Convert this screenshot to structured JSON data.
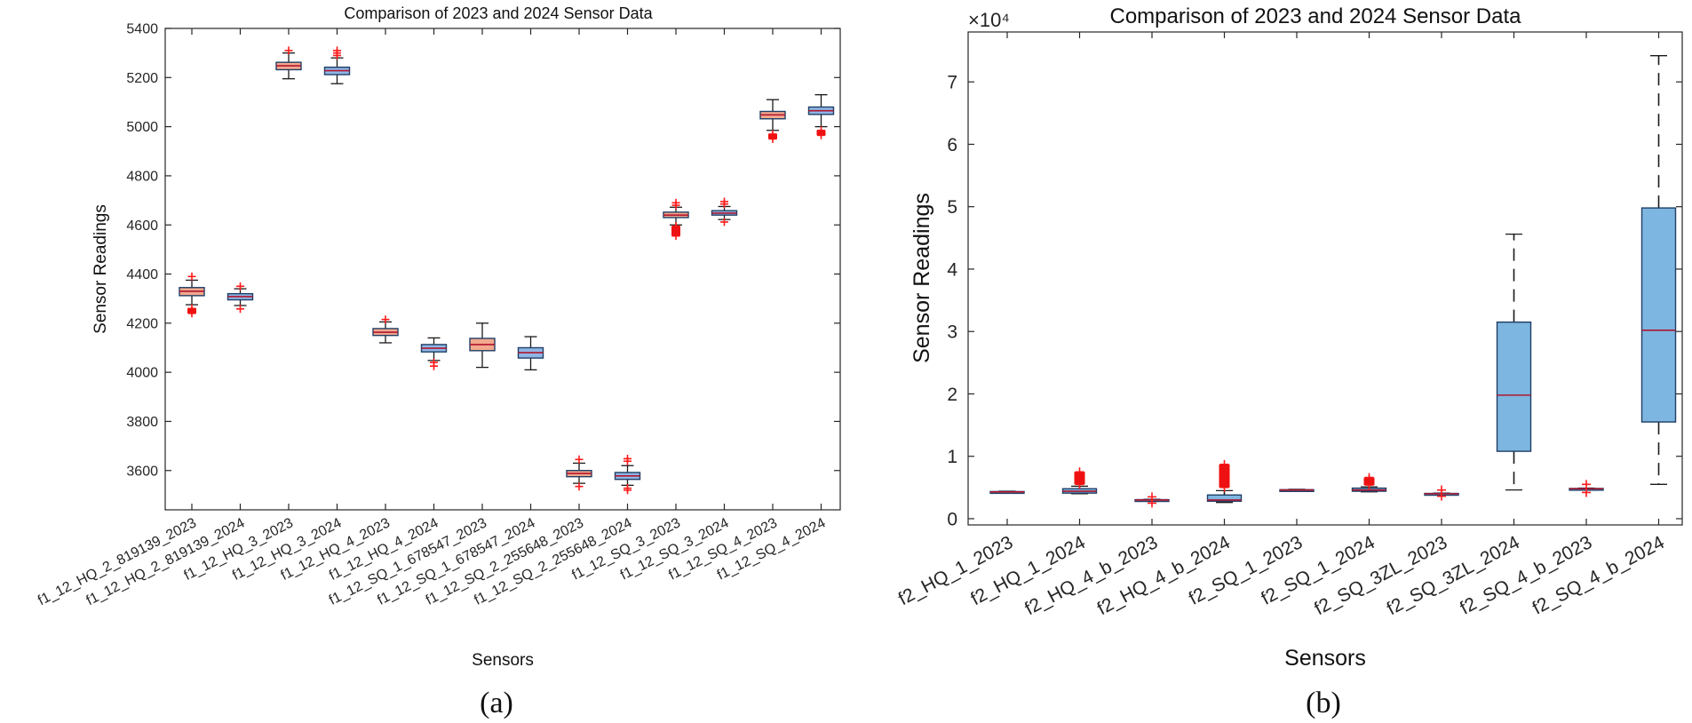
{
  "panel_labels": {
    "a": "(a)",
    "b": "(b)"
  },
  "colors": {
    "box_2023_a": "#f3a98e",
    "box_2024_a": "#8fb6e6",
    "box_b": "#7db6e0",
    "outlier": "#ff1a1a",
    "median": "#b0162f"
  },
  "chart_data": [
    {
      "id": "a",
      "type": "box",
      "title": "Comparison of 2023 and 2024 Sensor Data",
      "xlabel": "Sensors",
      "ylabel": "Sensor Readings",
      "ylim": [
        3440,
        5400
      ],
      "yticks": [
        3600,
        3800,
        4000,
        4200,
        4400,
        4600,
        4800,
        5000,
        5200,
        5400
      ],
      "ytick_labels": [
        "3600",
        "3800",
        "4000",
        "4200",
        "4400",
        "4600",
        "4800",
        "5000",
        "5200",
        "5400"
      ],
      "categories": [
        "f1_12_HQ_2_819139_2023",
        "f1_12_HQ_2_819139_2024",
        "f1_12_HQ_3_2023",
        "f1_12_HQ_3_2024",
        "f1_12_HQ_4_2023",
        "f1_12_HQ_4_2024",
        "f1_12_SQ_1_678547_2023",
        "f1_12_SQ_1_678547_2024",
        "f1_12_SQ_2_255648_2023",
        "f1_12_SQ_2_255648_2024",
        "f1_12_SQ_3_2023",
        "f1_12_SQ_3_2024",
        "f1_12_SQ_4_2023",
        "f1_12_SQ_4_2024"
      ],
      "boxes": [
        {
          "year": "2023",
          "whisker_low": 4275,
          "q1": 4312,
          "median": 4330,
          "q3": 4345,
          "whisker_high": 4375,
          "outliers_low": [
            4240,
            4250,
            4260
          ],
          "outliers_high": [
            4390
          ]
        },
        {
          "year": "2024",
          "whisker_low": 4272,
          "q1": 4295,
          "median": 4308,
          "q3": 4320,
          "whisker_high": 4340,
          "outliers_low": [
            4258
          ],
          "outliers_high": [
            4350
          ]
        },
        {
          "year": "2023",
          "whisker_low": 5195,
          "q1": 5232,
          "median": 5248,
          "q3": 5262,
          "whisker_high": 5300,
          "outliers_low": [],
          "outliers_high": [
            5310
          ]
        },
        {
          "year": "2024",
          "whisker_low": 5175,
          "q1": 5212,
          "median": 5228,
          "q3": 5242,
          "whisker_high": 5280,
          "outliers_low": [],
          "outliers_high": [
            5290,
            5300,
            5310
          ]
        },
        {
          "year": "2023",
          "whisker_low": 4120,
          "q1": 4150,
          "median": 4163,
          "q3": 4178,
          "whisker_high": 4205,
          "outliers_low": [],
          "outliers_high": [
            4215
          ]
        },
        {
          "year": "2024",
          "whisker_low": 4048,
          "q1": 4083,
          "median": 4098,
          "q3": 4113,
          "whisker_high": 4140,
          "outliers_low": [
            4040,
            4025
          ],
          "outliers_high": []
        },
        {
          "year": "2023",
          "whisker_low": 4020,
          "q1": 4088,
          "median": 4113,
          "q3": 4138,
          "whisker_high": 4200,
          "outliers_low": [],
          "outliers_high": []
        },
        {
          "year": "2024",
          "whisker_low": 4010,
          "q1": 4058,
          "median": 4080,
          "q3": 4100,
          "whisker_high": 4145,
          "outliers_low": [],
          "outliers_high": []
        },
        {
          "year": "2023",
          "whisker_low": 3548,
          "q1": 3575,
          "median": 3588,
          "q3": 3600,
          "whisker_high": 3630,
          "outliers_low": [
            3535
          ],
          "outliers_high": [
            3645
          ]
        },
        {
          "year": "2024",
          "whisker_low": 3540,
          "q1": 3564,
          "median": 3578,
          "q3": 3592,
          "whisker_high": 3620,
          "outliers_low": [
            3520,
            3528
          ],
          "outliers_high": [
            3638,
            3648
          ]
        },
        {
          "year": "2023",
          "whisker_low": 4600,
          "q1": 4630,
          "median": 4640,
          "q3": 4652,
          "whisker_high": 4672,
          "outliers_low": [
            4555,
            4570,
            4585,
            4595
          ],
          "outliers_high": [
            4680,
            4690
          ]
        },
        {
          "year": "2024",
          "whisker_low": 4622,
          "q1": 4640,
          "median": 4648,
          "q3": 4658,
          "whisker_high": 4675,
          "outliers_low": [
            4612
          ],
          "outliers_high": [
            4685,
            4695
          ]
        },
        {
          "year": "2023",
          "whisker_low": 4985,
          "q1": 5032,
          "median": 5048,
          "q3": 5062,
          "whisker_high": 5110,
          "outliers_low": [
            4950,
            4960,
            4970
          ],
          "outliers_high": []
        },
        {
          "year": "2024",
          "whisker_low": 5000,
          "q1": 5050,
          "median": 5065,
          "q3": 5080,
          "whisker_high": 5130,
          "outliers_low": [
            4965,
            4975,
            4985
          ],
          "outliers_high": []
        }
      ]
    },
    {
      "id": "b",
      "type": "box",
      "title": "Comparison of 2023 and 2024 Sensor Data",
      "xlabel": "Sensors",
      "ylabel": "Sensor Readings",
      "exponent_label": "×10⁴",
      "ylim": [
        -1000,
        78000
      ],
      "yticks": [
        0,
        10000,
        20000,
        30000,
        40000,
        50000,
        60000,
        70000
      ],
      "ytick_labels": [
        "0",
        "1",
        "2",
        "3",
        "4",
        "5",
        "6",
        "7"
      ],
      "categories": [
        "f2_HQ_1_2023",
        "f2_HQ_1_2024",
        "f2_HQ_4_b_2023",
        "f2_HQ_4_b_2024",
        "f2_SQ_1_2023",
        "f2_SQ_1_2024",
        "f2_SQ_3ZL_2023",
        "f2_SQ_3ZL_2024",
        "f2_SQ_4_b_2023",
        "f2_SQ_4_b_2024"
      ],
      "boxes": [
        {
          "whisker_low": 4200,
          "q1": 4250,
          "median": 4300,
          "q3": 4350,
          "whisker_high": 4400,
          "outliers_low": [],
          "outliers_high": []
        },
        {
          "whisker_low": 4000,
          "q1": 4100,
          "median": 4400,
          "q3": 4800,
          "whisker_high": 5200,
          "outliers_low": [],
          "outliers_high": [
            5500,
            6000,
            6500,
            7000,
            7500
          ]
        },
        {
          "whisker_low": 2900,
          "q1": 2950,
          "median": 3000,
          "q3": 3050,
          "whisker_high": 3100,
          "outliers_low": [
            2500
          ],
          "outliers_high": [
            3500
          ]
        },
        {
          "whisker_low": 2600,
          "q1": 2800,
          "median": 3000,
          "q3": 3800,
          "whisker_high": 4500,
          "outliers_low": [],
          "outliers_high": [
            5000,
            5500,
            6000,
            6500,
            7000,
            7500,
            8000,
            8700
          ]
        },
        {
          "whisker_low": 4500,
          "q1": 4550,
          "median": 4600,
          "q3": 4650,
          "whisker_high": 4700,
          "outliers_low": [],
          "outliers_high": []
        },
        {
          "whisker_low": 4300,
          "q1": 4400,
          "median": 4600,
          "q3": 4900,
          "whisker_high": 5100,
          "outliers_low": [],
          "outliers_high": [
            5400,
            5800,
            6200,
            6600
          ]
        },
        {
          "whisker_low": 3900,
          "q1": 3950,
          "median": 4000,
          "q3": 4050,
          "whisker_high": 4100,
          "outliers_low": [
            3600
          ],
          "outliers_high": [
            4600
          ]
        },
        {
          "whisker_low": 4600,
          "q1": 10800,
          "median": 19800,
          "q3": 31500,
          "whisker_high": 45600,
          "outliers_low": [],
          "outliers_high": []
        },
        {
          "whisker_low": 4700,
          "q1": 4750,
          "median": 4800,
          "q3": 4850,
          "whisker_high": 4900,
          "outliers_low": [
            4200
          ],
          "outliers_high": [
            5500
          ]
        },
        {
          "whisker_low": 5500,
          "q1": 15500,
          "median": 30200,
          "q3": 49800,
          "whisker_high": 74200,
          "outliers_low": [],
          "outliers_high": []
        }
      ]
    }
  ]
}
